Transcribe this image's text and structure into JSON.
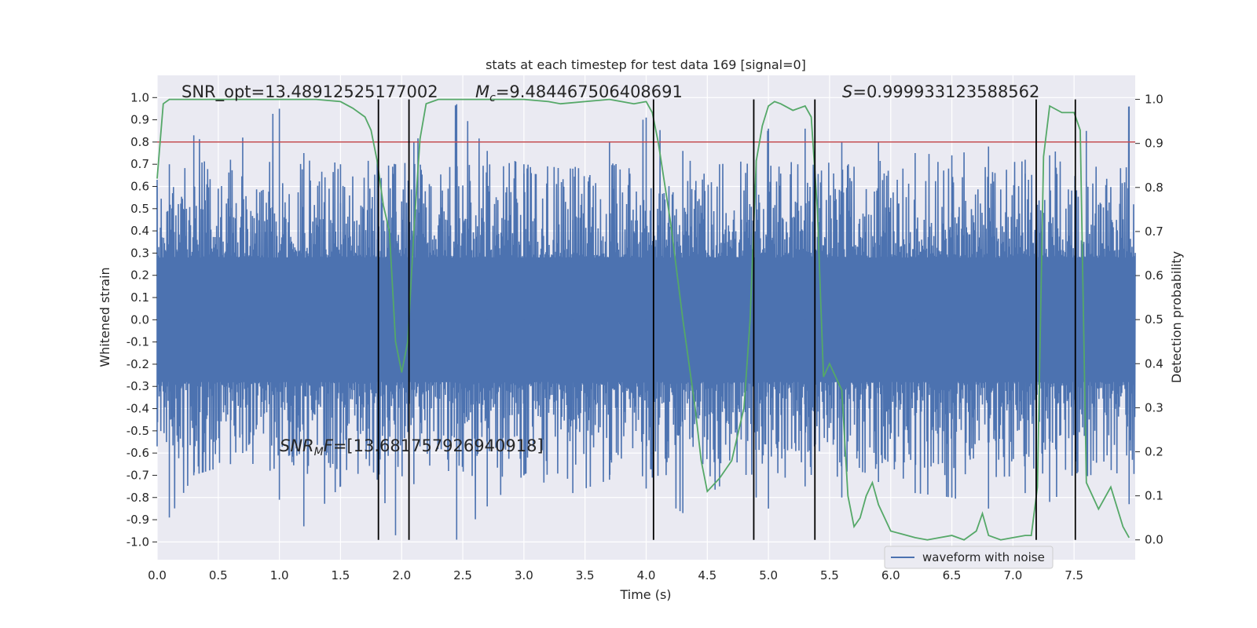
{
  "chart_data": {
    "type": "line",
    "title": "stats at each timestep for test data 169 [signal=0]",
    "xlabel": "Time (s)",
    "ylabel": "Whitened strain",
    "y2label": "Detection probability",
    "xlim": [
      0.0,
      8.0
    ],
    "ylim": [
      -1.08,
      1.1
    ],
    "y2lim": [
      -0.045,
      1.0545
    ],
    "x_ticks": [
      "0.0",
      "0.5",
      "1.0",
      "1.5",
      "2.0",
      "2.5",
      "3.0",
      "3.5",
      "4.0",
      "4.5",
      "5.0",
      "5.5",
      "6.0",
      "6.5",
      "7.0",
      "7.5"
    ],
    "y_ticks": [
      "1.0",
      "0.9",
      "0.8",
      "0.7",
      "0.6",
      "0.5",
      "0.4",
      "0.3",
      "0.2",
      "0.1",
      "0.0",
      "-0.1",
      "-0.2",
      "-0.3",
      "-0.4",
      "-0.5",
      "-0.6",
      "-0.7",
      "-0.8",
      "-0.9",
      "-1.0"
    ],
    "y2_ticks": [
      "1.0",
      "0.9",
      "0.8",
      "0.7",
      "0.6",
      "0.5",
      "0.4",
      "0.3",
      "0.2",
      "0.1",
      "0.0"
    ],
    "grid": true,
    "legend": {
      "placement": "lower-right",
      "entries": [
        "waveform with noise"
      ]
    },
    "annotations": {
      "snr_opt": "SNR_opt=13.48912525177002",
      "mc_prefix": "M",
      "mc_sub": "c",
      "mc_value": "=9.484467506408691",
      "s_prefix": "S",
      "s_value": "=0.999933123588562",
      "snrmf_prefix": "SNR",
      "snrmf_sub": "M",
      "snrmf_mid": "F",
      "snrmf_value": "=[13.681757926940918]"
    },
    "threshold": 0.8,
    "vlines": [
      1.81,
      2.06,
      4.06,
      4.88,
      5.38,
      7.19,
      7.51
    ],
    "series": [
      {
        "name": "waveform with noise",
        "color": "#4c72b0",
        "kind": "strain",
        "envelope_peaks": [
          [
            0.0,
            0.63,
            -0.57
          ],
          [
            0.1,
            0.7,
            -0.89
          ],
          [
            0.3,
            0.83,
            -0.7
          ],
          [
            0.6,
            0.72,
            -0.65
          ],
          [
            0.7,
            0.82,
            -0.6
          ],
          [
            1.0,
            0.95,
            -0.81
          ],
          [
            1.2,
            0.75,
            -0.93
          ],
          [
            1.5,
            0.7,
            -0.75
          ],
          [
            1.8,
            0.72,
            -0.72
          ],
          [
            1.95,
            0.7,
            -0.97
          ],
          [
            2.1,
            0.8,
            -0.74
          ],
          [
            2.45,
            0.97,
            -0.99
          ],
          [
            2.7,
            0.76,
            -0.84
          ],
          [
            3.0,
            0.7,
            -0.7
          ],
          [
            3.4,
            0.68,
            -0.78
          ],
          [
            3.7,
            0.8,
            -0.72
          ],
          [
            4.0,
            0.91,
            -0.76
          ],
          [
            4.3,
            0.76,
            -0.87
          ],
          [
            4.6,
            0.7,
            -0.75
          ],
          [
            4.9,
            0.72,
            -0.8
          ],
          [
            5.0,
            0.86,
            -0.85
          ],
          [
            5.3,
            0.86,
            -0.75
          ],
          [
            5.6,
            0.8,
            -0.8
          ],
          [
            5.9,
            0.8,
            -0.73
          ],
          [
            6.2,
            0.75,
            -0.78
          ],
          [
            6.5,
            0.74,
            -0.8
          ],
          [
            6.8,
            0.78,
            -0.85
          ],
          [
            7.1,
            0.72,
            -0.78
          ],
          [
            7.3,
            0.74,
            -0.82
          ],
          [
            7.6,
            0.85,
            -0.7
          ],
          [
            7.95,
            0.96,
            -0.83
          ]
        ]
      },
      {
        "name": "",
        "color": "#55a868",
        "kind": "probability",
        "x": [
          0.0,
          0.05,
          0.1,
          0.2,
          0.4,
          0.7,
          1.0,
          1.3,
          1.5,
          1.6,
          1.7,
          1.75,
          1.8,
          1.85,
          1.9,
          1.95,
          2.0,
          2.05,
          2.1,
          2.15,
          2.2,
          2.3,
          2.5,
          2.8,
          3.0,
          3.2,
          3.3,
          3.5,
          3.7,
          3.9,
          4.0,
          4.05,
          4.1,
          4.2,
          4.3,
          4.4,
          4.45,
          4.5,
          4.6,
          4.7,
          4.8,
          4.85,
          4.9,
          4.95,
          5.0,
          5.05,
          5.1,
          5.2,
          5.3,
          5.35,
          5.4,
          5.45,
          5.5,
          5.6,
          5.65,
          5.7,
          5.75,
          5.8,
          5.85,
          5.9,
          6.0,
          6.2,
          6.3,
          6.4,
          6.5,
          6.6,
          6.7,
          6.75,
          6.8,
          6.9,
          7.0,
          7.1,
          7.15,
          7.2,
          7.25,
          7.3,
          7.4,
          7.5,
          7.55,
          7.6,
          7.7,
          7.8,
          7.9,
          7.95
        ],
        "y": [
          0.82,
          0.99,
          1.0,
          1.0,
          1.0,
          1.0,
          1.0,
          1.0,
          0.995,
          0.98,
          0.96,
          0.93,
          0.86,
          0.76,
          0.7,
          0.45,
          0.38,
          0.45,
          0.7,
          0.91,
          0.99,
          1.0,
          1.0,
          1.0,
          1.0,
          0.995,
          0.99,
          0.995,
          1.0,
          0.99,
          0.995,
          0.97,
          0.9,
          0.72,
          0.5,
          0.3,
          0.18,
          0.11,
          0.14,
          0.18,
          0.3,
          0.5,
          0.86,
          0.94,
          0.985,
          0.995,
          0.99,
          0.975,
          0.985,
          0.96,
          0.75,
          0.37,
          0.4,
          0.34,
          0.1,
          0.03,
          0.05,
          0.1,
          0.13,
          0.08,
          0.02,
          0.005,
          0.0,
          0.005,
          0.01,
          0.0,
          0.02,
          0.06,
          0.01,
          0.0,
          0.005,
          0.01,
          0.01,
          0.12,
          0.87,
          0.985,
          0.97,
          0.97,
          0.93,
          0.13,
          0.07,
          0.12,
          0.03,
          0.005
        ]
      }
    ]
  }
}
